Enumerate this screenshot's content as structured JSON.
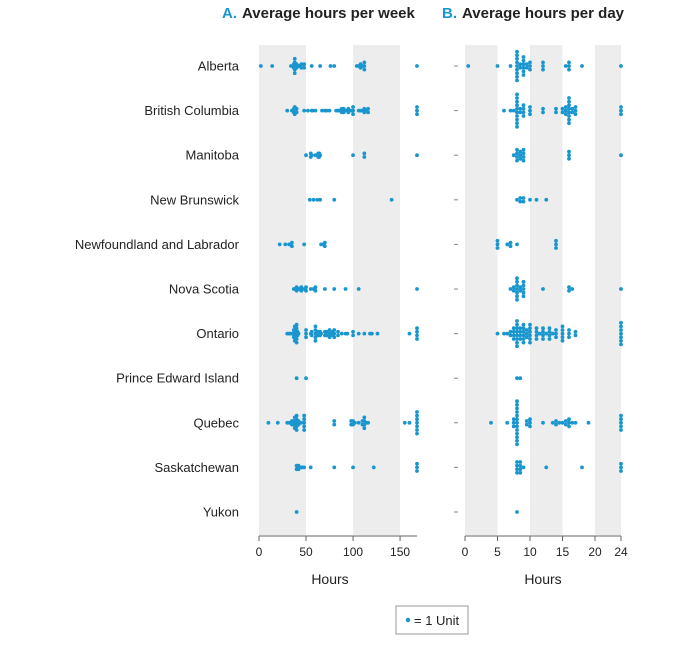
{
  "colors": {
    "dot": "#1a96cf",
    "band": "#ededed",
    "text": "#222222",
    "panel_letter": "#1a96cf"
  },
  "legend": {
    "label": "= 1 Unit"
  },
  "chart_data": [
    {
      "type": "scatter",
      "panel_letter": "A.",
      "title": "Average hours per week",
      "xlabel": "Hours",
      "xlim": [
        0,
        168
      ],
      "ticks": [
        0,
        50,
        100,
        150
      ],
      "shaded_bands": [
        [
          0,
          50
        ],
        [
          100,
          150
        ]
      ],
      "categories": [
        "Alberta",
        "British Columbia",
        "Manitoba",
        "New Brunswick",
        "Newfoundland and Labrador",
        "Nova Scotia",
        "Ontario",
        "Prince Edward Island",
        "Quebec",
        "Saskatchewan",
        "Yukon"
      ],
      "points": {
        "Alberta": [
          2,
          14,
          34,
          37,
          37,
          38,
          38,
          38,
          38,
          38,
          39,
          40,
          40,
          41,
          42,
          43,
          44,
          45,
          45,
          48,
          48,
          56,
          65,
          76,
          80,
          104,
          106,
          108,
          108,
          109,
          110,
          112,
          112,
          112,
          168
        ],
        "British Columbia": [
          30,
          35,
          37,
          37,
          38,
          38,
          38,
          39,
          40,
          40,
          48,
          52,
          56,
          57,
          60,
          67,
          70,
          72,
          75,
          82,
          84,
          85,
          86,
          87,
          88,
          88,
          89,
          90,
          90,
          92,
          94,
          95,
          95,
          98,
          100,
          100,
          100,
          106,
          108,
          110,
          112,
          112,
          114,
          116,
          116,
          168,
          168,
          168
        ],
        "Manitoba": [
          50,
          55,
          55,
          56,
          60,
          63,
          63,
          64,
          64,
          65,
          100,
          112,
          112,
          168
        ],
        "New Brunswick": [
          54,
          58,
          62,
          65,
          80,
          141
        ],
        "Newfoundland and Labrador": [
          22,
          28,
          32,
          33,
          34,
          35,
          35,
          48,
          66,
          68,
          69,
          70,
          70
        ],
        "Nova Scotia": [
          37,
          38,
          40,
          40,
          41,
          42,
          43,
          44,
          45,
          45,
          48,
          49,
          50,
          50,
          55,
          58,
          60,
          60,
          70,
          80,
          92,
          106,
          168
        ],
        "Ontario": [
          30,
          32,
          33,
          35,
          36,
          37,
          37,
          37,
          38,
          38,
          38,
          38,
          38,
          39,
          39,
          39,
          40,
          40,
          40,
          40,
          40,
          40,
          41,
          41,
          42,
          50,
          50,
          50,
          55,
          56,
          56,
          60,
          60,
          60,
          60,
          60,
          63,
          63,
          65,
          65,
          66,
          70,
          70,
          72,
          72,
          75,
          75,
          75,
          78,
          78,
          80,
          80,
          80,
          84,
          84,
          88,
          92,
          94,
          100,
          100,
          106,
          112,
          118,
          120,
          126,
          160,
          168,
          168,
          168,
          168
        ],
        "Prince Edward Island": [
          40,
          50
        ],
        "Quebec": [
          10,
          20,
          30,
          32,
          35,
          35,
          36,
          37,
          37,
          38,
          38,
          38,
          38,
          39,
          39,
          40,
          40,
          40,
          40,
          40,
          41,
          41,
          42,
          42,
          45,
          48,
          48,
          48,
          48,
          48,
          80,
          80,
          98,
          98,
          100,
          100,
          102,
          106,
          110,
          110,
          112,
          112,
          112,
          112,
          114,
          116,
          155,
          160,
          168,
          168,
          168,
          168,
          168,
          168,
          168
        ],
        "Saskatchewan": [
          40,
          40,
          41,
          42,
          42,
          43,
          44,
          45,
          46,
          48,
          55,
          80,
          100,
          122,
          168,
          168,
          168
        ],
        "Yukon": [
          40
        ]
      }
    },
    {
      "type": "scatter",
      "panel_letter": "B.",
      "title": "Average hours per day",
      "xlabel": "Hours",
      "xlim": [
        0,
        24
      ],
      "ticks": [
        0,
        5,
        10,
        15,
        20,
        24
      ],
      "shaded_bands": [
        [
          0,
          5
        ],
        [
          10,
          15
        ],
        [
          20,
          24
        ]
      ],
      "categories": [
        "Alberta",
        "British Columbia",
        "Manitoba",
        "New Brunswick",
        "Newfoundland and Labrador",
        "Nova Scotia",
        "Ontario",
        "Prince Edward Island",
        "Quebec",
        "Saskatchewan",
        "Yukon"
      ],
      "points": {
        "Alberta": [
          0.5,
          5,
          7,
          8,
          8,
          8,
          8,
          8,
          8,
          8,
          8,
          8,
          8.5,
          8.5,
          9,
          9,
          9,
          9,
          9,
          9,
          9.5,
          9.5,
          10,
          10,
          10,
          12,
          12,
          12,
          15.5,
          16,
          16,
          16,
          18,
          24
        ],
        "British Columbia": [
          6,
          7,
          7.5,
          8,
          8,
          8,
          8,
          8,
          8,
          8,
          8,
          8,
          8,
          8.5,
          8.5,
          9,
          9,
          9,
          9,
          10,
          10,
          10,
          12,
          12,
          14,
          14,
          15,
          15,
          15.5,
          15.5,
          15.5,
          16,
          16,
          16,
          16,
          16,
          16,
          16,
          16,
          16.5,
          16.5,
          17,
          17,
          17,
          24,
          24,
          24
        ],
        "Manitoba": [
          7.5,
          8,
          8,
          8,
          8,
          8.5,
          8.5,
          8.5,
          9,
          9,
          9,
          9,
          16,
          16,
          16,
          24
        ],
        "New Brunswick": [
          8,
          8.5,
          8.5,
          9,
          9,
          10,
          11,
          12.5
        ],
        "Newfoundland and Labrador": [
          5,
          5,
          5,
          6.5,
          7,
          7,
          8,
          14,
          14,
          14
        ],
        "Nova Scotia": [
          7,
          7.5,
          7.5,
          8,
          8,
          8,
          8,
          8,
          8,
          8,
          8.5,
          8.5,
          9,
          9,
          9,
          9,
          9,
          12,
          16,
          16,
          16.5,
          24
        ],
        "Ontario": [
          5,
          6,
          6.5,
          7,
          7,
          7.5,
          7.5,
          7.5,
          7.5,
          8,
          8,
          8,
          8,
          8,
          8,
          8,
          8,
          8.5,
          8.5,
          8.5,
          8.5,
          9,
          9,
          9,
          9,
          9,
          9,
          9.5,
          9.5,
          9.5,
          10,
          10,
          10,
          10,
          10,
          10,
          11,
          11,
          11,
          11,
          11.5,
          12,
          12,
          12,
          12,
          12.5,
          13,
          13,
          13,
          13,
          13.5,
          14,
          14,
          14,
          15,
          15,
          15,
          15,
          15,
          16,
          16,
          16,
          17,
          17,
          24,
          24,
          24,
          24,
          24,
          24,
          24
        ],
        "Prince Edward Island": [
          8,
          8.5
        ],
        "Quebec": [
          4,
          6.5,
          7.5,
          7.5,
          7.5,
          8,
          8,
          8,
          8,
          8,
          8,
          8,
          8,
          8,
          8,
          8,
          8,
          8,
          9.5,
          9.5,
          10,
          10,
          10,
          12,
          13.5,
          14,
          14,
          14.5,
          15,
          15.5,
          15.5,
          16,
          16,
          16,
          16.5,
          17,
          19,
          24,
          24,
          24,
          24,
          24
        ],
        "Saskatchewan": [
          8,
          8,
          8,
          8,
          8.5,
          8.5,
          8.5,
          8.5,
          9,
          12.5,
          18,
          24,
          24,
          24
        ],
        "Yukon": [
          8
        ]
      }
    }
  ]
}
